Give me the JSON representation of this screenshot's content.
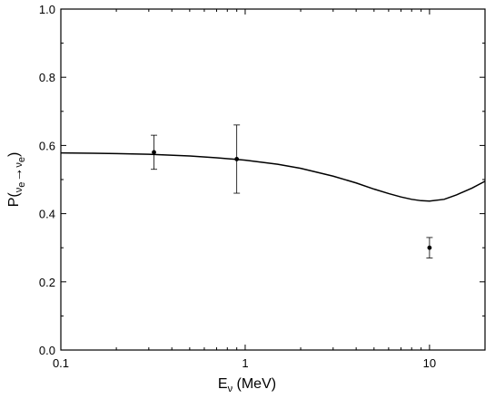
{
  "chart_data": {
    "type": "scatter",
    "xscale": "log",
    "xlim": [
      0.1,
      20
    ],
    "ylim": [
      0.0,
      1.0
    ],
    "x_ticks": [
      0.1,
      1,
      10
    ],
    "x_tick_labels": [
      "0.1",
      "1",
      "10"
    ],
    "y_ticks": [
      0.0,
      0.2,
      0.4,
      0.6,
      0.8,
      1.0
    ],
    "y_tick_labels": [
      "0.0",
      "0.2",
      "0.4",
      "0.6",
      "0.8",
      "1.0"
    ],
    "xlabel": {
      "main": "E",
      "sub": "ν",
      "rest": " (MeV)"
    },
    "ylabel": {
      "prefix": "P(",
      "nu1": "ν",
      "sub1": "e",
      "arrow": "→",
      "nu2": "ν",
      "sub2": "e",
      "suffix": ")"
    },
    "grid": false,
    "legend": "none",
    "series": [
      {
        "type": "line",
        "x": [
          0.1,
          0.15,
          0.2,
          0.3,
          0.5,
          0.7,
          1.0,
          1.5,
          2.0,
          3.0,
          4.0,
          5.0,
          6.0,
          7.0,
          8.0,
          9.0,
          10.0,
          12.0,
          14.0,
          17.0,
          20.0
        ],
        "y": [
          0.578,
          0.577,
          0.576,
          0.574,
          0.569,
          0.564,
          0.557,
          0.545,
          0.533,
          0.51,
          0.49,
          0.472,
          0.459,
          0.449,
          0.442,
          0.438,
          0.437,
          0.442,
          0.455,
          0.475,
          0.495
        ]
      },
      {
        "type": "errorbar",
        "x": [
          0.32,
          0.9,
          10.0
        ],
        "y": [
          0.58,
          0.56,
          0.3
        ],
        "yerr_low": [
          0.05,
          0.1,
          0.03
        ],
        "yerr_high": [
          0.05,
          0.1,
          0.03
        ]
      }
    ]
  }
}
